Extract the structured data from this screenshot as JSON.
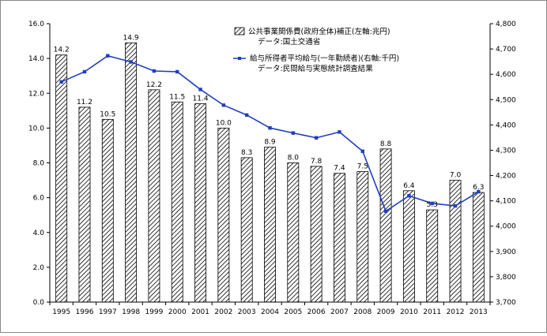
{
  "chart_data": {
    "type": "bar+line",
    "categories": [
      "1995",
      "1996",
      "1997",
      "1998",
      "1999",
      "2000",
      "2001",
      "2002",
      "2003",
      "2004",
      "2005",
      "2006",
      "2007",
      "2008",
      "2009",
      "2010",
      "2011",
      "2012",
      "2013"
    ],
    "series": [
      {
        "name": "公共事業関係費(政府全体)補正(左軸:兆円)",
        "source": "データ:国土交通省",
        "type": "bar",
        "axis": "left",
        "values": [
          14.2,
          11.2,
          10.5,
          14.9,
          12.2,
          11.5,
          11.4,
          10.0,
          8.3,
          8.9,
          8.0,
          7.8,
          7.4,
          7.5,
          8.8,
          6.4,
          5.3,
          7.0,
          6.3
        ],
        "data_labels": [
          "14.2",
          "11.2",
          "10.5",
          "14.9",
          "12.2",
          "11.5",
          "11.4",
          "10.0",
          "8.3",
          "8.9",
          "8.0",
          "7.8",
          "7.4",
          "7.5",
          "8.8",
          "6.4",
          "5.3",
          "7.0",
          "6.3"
        ]
      },
      {
        "name": "給与所得者平均給与(一年勤続者)(右軸:千円)",
        "source": "データ:民間給与実態統計調査結果",
        "type": "line",
        "axis": "right",
        "values": [
          4570,
          4610,
          4673,
          4649,
          4613,
          4610,
          4540,
          4478,
          4439,
          4388,
          4368,
          4349,
          4372,
          4296,
          4059,
          4120,
          4090,
          4080,
          4136
        ]
      }
    ],
    "left_axis": {
      "ylim": [
        0,
        16
      ],
      "ticks": [
        "0.0",
        "2.0",
        "4.0",
        "6.0",
        "8.0",
        "10.0",
        "12.0",
        "14.0",
        "16.0"
      ]
    },
    "right_axis": {
      "ylim": [
        3700,
        4800
      ],
      "ticks": [
        "3,700",
        "3,800",
        "3,900",
        "4,000",
        "4,100",
        "4,200",
        "4,300",
        "4,400",
        "4,500",
        "4,600",
        "4,700",
        "4,800"
      ]
    },
    "grid": false,
    "legend_position": "top-right",
    "colors": {
      "bar_hatch": "#000000",
      "bar_fill": "#ffffff",
      "line": "#1f3fbf"
    }
  }
}
